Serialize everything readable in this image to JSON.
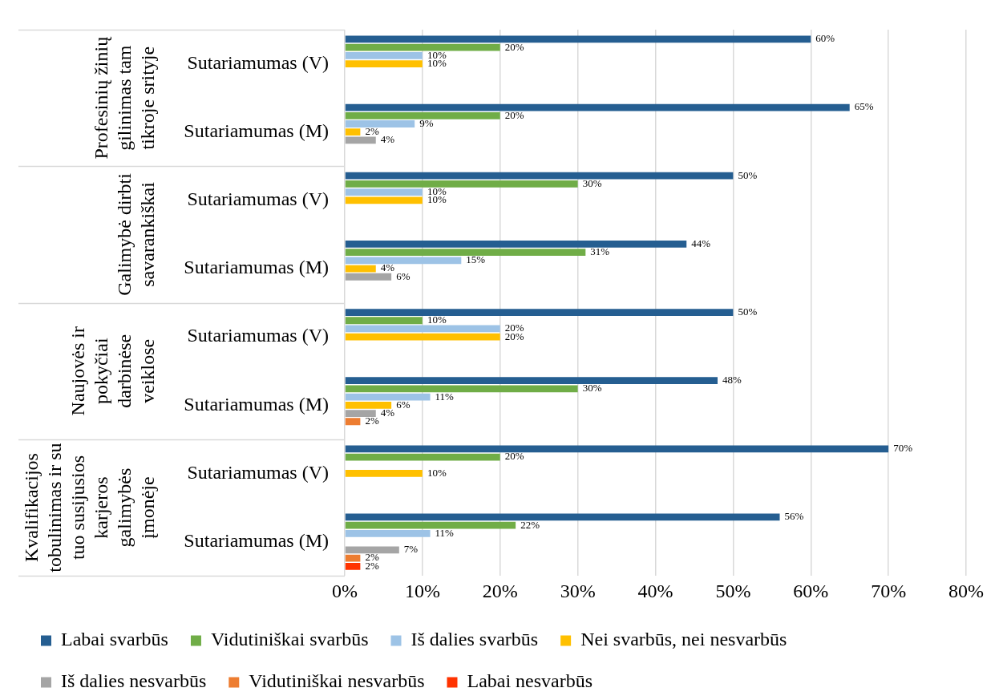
{
  "chart_data": {
    "type": "bar",
    "orientation": "horizontal",
    "categories": [
      "Sutariamumas (V)",
      "Sutariamumas (M)",
      "Sutariamumas (V)",
      "Sutariamumas (M)",
      "Sutariamumas (V)",
      "Sutariamumas (M)",
      "Sutariamumas (V)",
      "Sutariamumas (M)"
    ],
    "annotations": [
      "Profesinių žinių gilinimas tam tikroje srityje",
      "Galimybė dirbti savarankiškai",
      "Naujovės ir pokyčiai darbinėse veiklose",
      "Kvalifikacijos tobulinimas ir su tuo susijusios karjeros galimybės įmonėje"
    ],
    "series": [
      {
        "name": "Labai svarbūs",
        "color": "#255e91",
        "values": [
          60,
          65,
          50,
          44,
          50,
          48,
          70,
          56
        ],
        "value_labels": [
          "60%",
          "65%",
          "50%",
          "44%",
          "50%",
          "48%",
          "70%",
          "56%"
        ]
      },
      {
        "name": "Vidutiniškai svarbūs",
        "color": "#70ad47",
        "values": [
          20,
          20,
          30,
          31,
          10,
          30,
          20,
          22
        ],
        "value_labels": [
          "20%",
          "20%",
          "30%",
          "31%",
          "10%",
          "30%",
          "20%",
          "22%"
        ]
      },
      {
        "name": "Iš dalies svarbūs",
        "color": "#9dc3e6",
        "values": [
          10,
          9,
          10,
          15,
          20,
          11,
          null,
          11
        ],
        "value_labels": [
          "10%",
          "9%",
          "10%",
          "15%",
          "20%",
          "11%",
          null,
          "11%"
        ]
      },
      {
        "name": "Nei svarbūs, nei nesvarbūs",
        "color": "#ffc000",
        "values": [
          10,
          2,
          10,
          4,
          20,
          6,
          10,
          null
        ],
        "value_labels": [
          "10%",
          "2%",
          "10%",
          "4%",
          "20%",
          "6%",
          "10%",
          null
        ]
      },
      {
        "name": "Iš dalies nesvarbūs",
        "color": "#a5a5a5",
        "values": [
          null,
          4,
          null,
          6,
          null,
          4,
          null,
          7
        ],
        "value_labels": [
          null,
          "4%",
          null,
          "6%",
          null,
          "4%",
          null,
          "7%"
        ]
      },
      {
        "name": "Vidutiniškai nesvarbūs",
        "color": "#ed7d31",
        "values": [
          null,
          null,
          null,
          null,
          null,
          2,
          null,
          2
        ],
        "value_labels": [
          null,
          null,
          null,
          null,
          null,
          "2%",
          null,
          "2%"
        ]
      },
      {
        "name": "Labai nesvarbūs",
        "color": "#ff3300",
        "values": [
          null,
          null,
          null,
          null,
          null,
          null,
          null,
          2
        ],
        "value_labels": [
          null,
          null,
          null,
          null,
          null,
          null,
          null,
          "2%"
        ]
      }
    ],
    "xlim": [
      0,
      80
    ],
    "xticks": [
      {
        "value": 0,
        "label": "0%"
      },
      {
        "value": 10,
        "label": "10%"
      },
      {
        "value": 20,
        "label": "20%"
      },
      {
        "value": 30,
        "label": "30%"
      },
      {
        "value": 40,
        "label": "40%"
      },
      {
        "value": 50,
        "label": "50%"
      },
      {
        "value": 60,
        "label": "60%"
      },
      {
        "value": 70,
        "label": "70%"
      },
      {
        "value": 80,
        "label": "80%"
      }
    ],
    "grid": "x",
    "legend": "bottom"
  }
}
